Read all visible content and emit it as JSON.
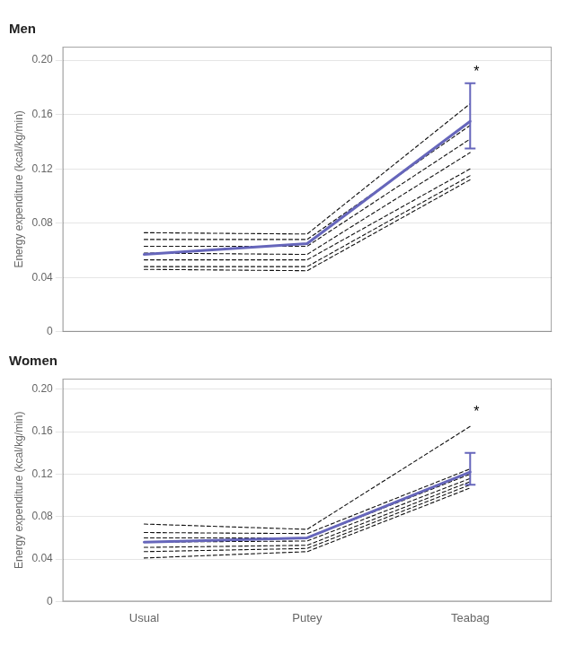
{
  "chart_data": [
    {
      "type": "line",
      "title": "Men",
      "ylabel": "Energy expenditure (kcal/kg/min)",
      "categories": [
        "Usual",
        "Putey",
        "Teabag"
      ],
      "ylim": [
        0,
        0.21
      ],
      "yticks": [
        0,
        0.04,
        0.08,
        0.12,
        0.16,
        {
          "value": 0.2,
          "label": "0.20"
        }
      ],
      "grid": true,
      "tick_labels": "y",
      "series": [
        {
          "color": "#111111",
          "line_style": "dashed",
          "values": [
            0.073,
            0.072,
            0.168
          ]
        },
        {
          "color": "#111111",
          "line_style": "dashed",
          "values": [
            0.068,
            0.068,
            0.152
          ]
        },
        {
          "color": "#111111",
          "line_style": "dashed",
          "values": [
            0.063,
            0.063,
            0.142
          ]
        },
        {
          "color": "#111111",
          "line_style": "dashed",
          "values": [
            0.058,
            0.057,
            0.132
          ]
        },
        {
          "color": "#111111",
          "line_style": "dashed",
          "values": [
            0.053,
            0.053,
            0.12
          ]
        },
        {
          "color": "#111111",
          "line_style": "dashed",
          "values": [
            0.048,
            0.048,
            0.115
          ]
        },
        {
          "color": "#111111",
          "line_style": "dashed",
          "values": [
            0.046,
            0.045,
            0.112
          ]
        },
        {
          "color": "#6666bb",
          "line_style": "solid",
          "values": [
            0.057,
            0.065,
            0.155
          ],
          "yerr_minus": [
            null,
            null,
            0.02
          ],
          "yerr_plus": [
            null,
            null,
            0.028
          ]
        }
      ],
      "annotations": [
        {
          "text": "*",
          "x": "Teabag",
          "y": 0.191
        }
      ]
    },
    {
      "type": "line",
      "title": "Women",
      "ylabel": "Energy expenditure (kcal/kg/min)",
      "categories": [
        "Usual",
        "Putey",
        "Teabag"
      ],
      "ylim": [
        0,
        0.21
      ],
      "yticks": [
        0,
        0.04,
        0.08,
        0.12,
        0.16,
        {
          "value": 0.2,
          "label": "0.20"
        }
      ],
      "grid": true,
      "series": [
        {
          "color": "#111111",
          "line_style": "dashed",
          "values": [
            0.073,
            0.068,
            0.165
          ]
        },
        {
          "color": "#111111",
          "line_style": "dashed",
          "values": [
            0.065,
            0.064,
            0.125
          ]
        },
        {
          "color": "#111111",
          "line_style": "dashed",
          "values": [
            0.06,
            0.06,
            0.12
          ]
        },
        {
          "color": "#111111",
          "line_style": "dashed",
          "values": [
            0.056,
            0.057,
            0.116
          ]
        },
        {
          "color": "#111111",
          "line_style": "dashed",
          "values": [
            0.051,
            0.053,
            0.113
          ]
        },
        {
          "color": "#111111",
          "line_style": "dashed",
          "values": [
            0.047,
            0.05,
            0.11
          ]
        },
        {
          "color": "#111111",
          "line_style": "dashed",
          "values": [
            0.041,
            0.047,
            0.107
          ]
        },
        {
          "color": "#6666bb",
          "line_style": "solid",
          "values": [
            0.056,
            0.06,
            0.122
          ],
          "yerr_minus": [
            null,
            null,
            0.012
          ],
          "yerr_plus": [
            null,
            null,
            0.018
          ]
        }
      ],
      "annotations": [
        {
          "text": "*",
          "x": "Teabag",
          "y": 0.178
        }
      ]
    }
  ]
}
